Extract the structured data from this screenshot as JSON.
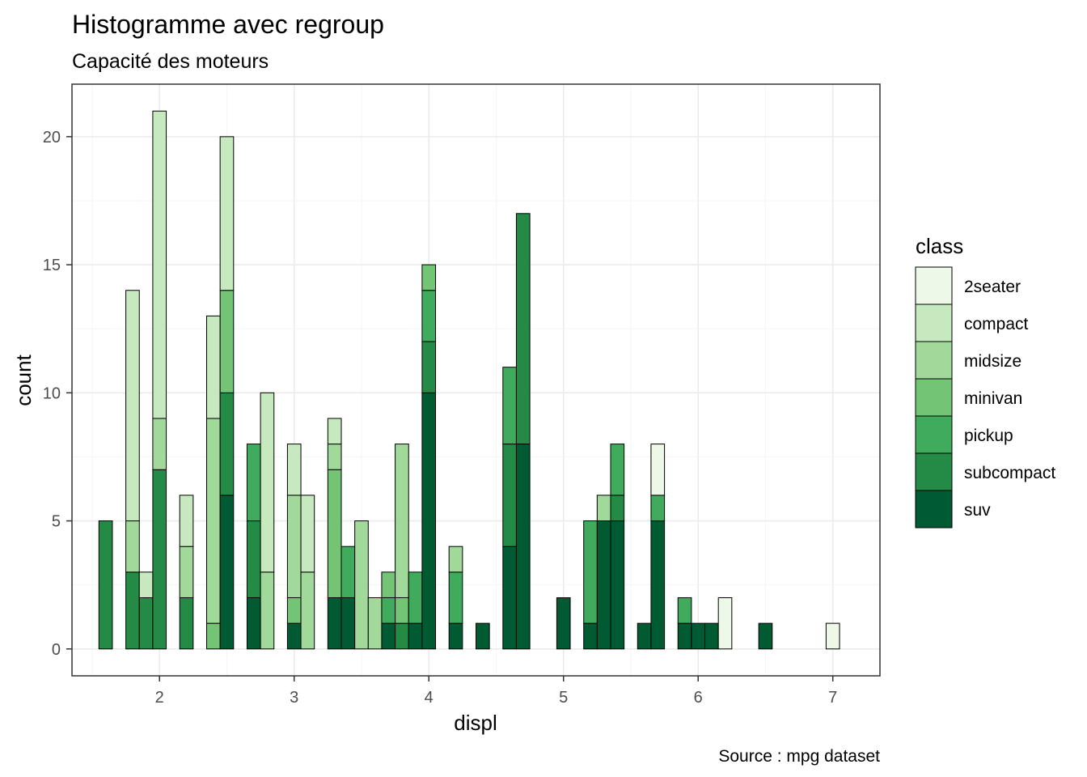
{
  "chart_data": {
    "type": "bar",
    "stacked": true,
    "title": "Histogramme avec regroup",
    "subtitle": "Capacité des moteurs",
    "xlabel": "displ",
    "ylabel": "count",
    "caption": "Source : mpg dataset",
    "xlim": [
      1.35,
      7.35
    ],
    "ylim": [
      -1.05,
      22.05
    ],
    "x_ticks": [
      2,
      3,
      4,
      5,
      6,
      7
    ],
    "y_ticks": [
      0,
      5,
      10,
      15,
      20
    ],
    "bin_width": 0.1,
    "grid": true,
    "legend": {
      "title": "class",
      "position": "right"
    },
    "series": [
      {
        "name": "2seater",
        "color": "#EDF8E9"
      },
      {
        "name": "compact",
        "color": "#C7E9C0"
      },
      {
        "name": "midsize",
        "color": "#A1D99B"
      },
      {
        "name": "minivan",
        "color": "#74C476"
      },
      {
        "name": "pickup",
        "color": "#41AB5D"
      },
      {
        "name": "subcompact",
        "color": "#238B45"
      },
      {
        "name": "suv",
        "color": "#005A32"
      }
    ],
    "bins": [
      {
        "x": 1.6,
        "counts": {
          "subcompact": 5
        }
      },
      {
        "x": 1.8,
        "counts": {
          "subcompact": 3,
          "midsize": 2,
          "compact": 9
        }
      },
      {
        "x": 1.9,
        "counts": {
          "subcompact": 2,
          "compact": 1
        }
      },
      {
        "x": 2.0,
        "counts": {
          "subcompact": 7,
          "midsize": 2,
          "compact": 12
        }
      },
      {
        "x": 2.2,
        "counts": {
          "subcompact": 2,
          "midsize": 2,
          "compact": 2
        }
      },
      {
        "x": 2.4,
        "counts": {
          "minivan": 1,
          "midsize": 8,
          "compact": 4
        }
      },
      {
        "x": 2.5,
        "counts": {
          "suv": 6,
          "subcompact": 4,
          "minivan": 4,
          "compact": 6
        }
      },
      {
        "x": 2.7,
        "counts": {
          "suv": 2,
          "subcompact": 3,
          "pickup": 3
        }
      },
      {
        "x": 2.8,
        "counts": {
          "midsize": 3,
          "compact": 7
        }
      },
      {
        "x": 3.0,
        "counts": {
          "suv": 1,
          "minivan": 1,
          "midsize": 4,
          "compact": 2
        }
      },
      {
        "x": 3.1,
        "counts": {
          "midsize": 3,
          "compact": 3
        }
      },
      {
        "x": 3.3,
        "counts": {
          "suv": 2,
          "minivan": 5,
          "midsize": 1,
          "compact": 1
        }
      },
      {
        "x": 3.4,
        "counts": {
          "suv": 2,
          "pickup": 2
        }
      },
      {
        "x": 3.5,
        "counts": {
          "midsize": 5
        }
      },
      {
        "x": 3.6,
        "counts": {
          "midsize": 2
        }
      },
      {
        "x": 3.7,
        "counts": {
          "suv": 1,
          "pickup": 1,
          "minivan": 1
        }
      },
      {
        "x": 3.8,
        "counts": {
          "subcompact": 1,
          "minivan": 1,
          "midsize": 6
        }
      },
      {
        "x": 3.9,
        "counts": {
          "suv": 1,
          "pickup": 2
        }
      },
      {
        "x": 4.0,
        "counts": {
          "suv": 10,
          "subcompact": 2,
          "pickup": 2,
          "minivan": 1
        }
      },
      {
        "x": 4.2,
        "counts": {
          "suv": 1,
          "pickup": 2,
          "midsize": 1
        }
      },
      {
        "x": 4.4,
        "counts": {
          "suv": 1
        }
      },
      {
        "x": 4.6,
        "counts": {
          "suv": 4,
          "subcompact": 4,
          "pickup": 3
        }
      },
      {
        "x": 4.7,
        "counts": {
          "suv": 8,
          "subcompact": 9
        }
      },
      {
        "x": 5.0,
        "counts": {
          "suv": 2
        }
      },
      {
        "x": 5.2,
        "counts": {
          "suv": 1,
          "pickup": 4
        }
      },
      {
        "x": 5.3,
        "counts": {
          "suv": 5,
          "midsize": 1
        }
      },
      {
        "x": 5.4,
        "counts": {
          "suv": 5,
          "subcompact": 1,
          "pickup": 2
        }
      },
      {
        "x": 5.6,
        "counts": {
          "suv": 1
        }
      },
      {
        "x": 5.7,
        "counts": {
          "suv": 5,
          "pickup": 1,
          "2seater": 2
        }
      },
      {
        "x": 5.9,
        "counts": {
          "suv": 1,
          "pickup": 1
        }
      },
      {
        "x": 6.0,
        "counts": {
          "suv": 1
        }
      },
      {
        "x": 6.1,
        "counts": {
          "suv": 1
        }
      },
      {
        "x": 6.2,
        "counts": {
          "2seater": 2
        }
      },
      {
        "x": 6.5,
        "counts": {
          "suv": 1
        }
      },
      {
        "x": 7.0,
        "counts": {
          "2seater": 1
        }
      }
    ]
  }
}
